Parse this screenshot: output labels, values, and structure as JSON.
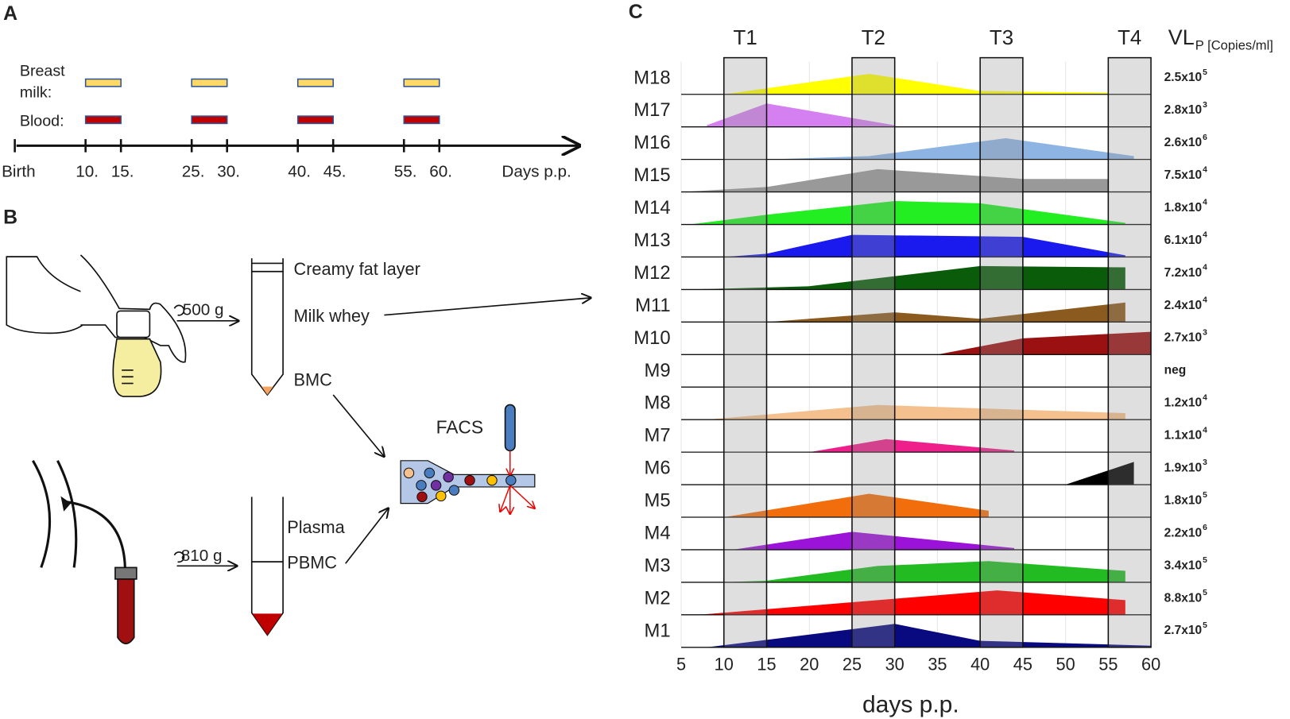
{
  "panel_labels": [
    "A",
    "B",
    "C"
  ],
  "panel_a": {
    "row_labels": [
      [
        "Breast",
        "milk:"
      ],
      "Blood:"
    ],
    "windows": [
      [
        10,
        15
      ],
      [
        25,
        30
      ],
      [
        40,
        45
      ],
      [
        55,
        60
      ]
    ],
    "ticks": [
      {
        "value": 0,
        "label": "Birth"
      },
      {
        "value": 10,
        "label": "10."
      },
      {
        "value": 15,
        "label": "15."
      },
      {
        "value": 25,
        "label": "25."
      },
      {
        "value": 30,
        "label": "30."
      },
      {
        "value": 40,
        "label": "40."
      },
      {
        "value": 45,
        "label": "45."
      },
      {
        "value": 55,
        "label": "55."
      },
      {
        "value": 60,
        "label": "60."
      }
    ],
    "axis_label": "Days p.p.",
    "milk_color": "#ffd966",
    "blood_color": "#c00000"
  },
  "panel_b": {
    "milk_spin": "500 g",
    "blood_spin": "810 g",
    "milk_layers": [
      "Creamy fat layer",
      "Milk whey",
      "BMC"
    ],
    "blood_layers": [
      "Plasma",
      "PBMC"
    ],
    "facs": "FACS"
  },
  "chart_data": {
    "type": "area",
    "xlabel": "days p.p.",
    "xlim": [
      5,
      60
    ],
    "xticks": [
      5,
      10,
      15,
      20,
      25,
      30,
      35,
      40,
      45,
      50,
      55,
      60
    ],
    "ylim": [
      0,
      1
    ],
    "grid": true,
    "periods": [
      {
        "label": "T1",
        "range": [
          10,
          15
        ]
      },
      {
        "label": "T2",
        "range": [
          25,
          30
        ]
      },
      {
        "label": "T3",
        "range": [
          40,
          45
        ]
      },
      {
        "label": "T4",
        "range": [
          55,
          60
        ]
      }
    ],
    "vl_header": "VL",
    "vl_header_sub": "P [Copies/ml]",
    "series": [
      {
        "name": "M18",
        "color": "#ffff00",
        "x": [
          10,
          27,
          40,
          55,
          55
        ],
        "values": [
          0,
          0.63,
          0.1,
          0.05,
          0
        ],
        "vl": "2.5x10",
        "vl_exp": "5"
      },
      {
        "name": "M17",
        "color": "#d580f0",
        "x": [
          8,
          15,
          30
        ],
        "values": [
          0.05,
          0.72,
          0.05
        ],
        "vl": "2.8x10",
        "vl_exp": "3"
      },
      {
        "name": "M16",
        "color": "#8db4e2",
        "x": [
          15,
          27,
          43,
          58
        ],
        "values": [
          0,
          0.1,
          0.65,
          0.1
        ],
        "vl": "2.6x10",
        "vl_exp": "6"
      },
      {
        "name": "M15",
        "color": "#999999",
        "x": [
          5,
          15,
          28,
          45,
          55,
          55
        ],
        "values": [
          0,
          0.15,
          0.7,
          0.4,
          0.4,
          0
        ],
        "vl": "7.5x10",
        "vl_exp": "4"
      },
      {
        "name": "M14",
        "color": "#22ee22",
        "x": [
          6,
          15,
          30,
          40,
          57
        ],
        "values": [
          0,
          0.3,
          0.72,
          0.65,
          0.05
        ],
        "vl": "1.8x10",
        "vl_exp": "4"
      },
      {
        "name": "M13",
        "color": "#1a1aee",
        "x": [
          10,
          15,
          25,
          45,
          57
        ],
        "values": [
          0,
          0.1,
          0.68,
          0.62,
          0.05
        ],
        "vl": "6.1x10",
        "vl_exp": "4"
      },
      {
        "name": "M12",
        "color": "#0a5c0a",
        "x": [
          6,
          20,
          40,
          57,
          57
        ],
        "values": [
          0,
          0.1,
          0.72,
          0.68,
          0
        ],
        "vl": "7.2x10",
        "vl_exp": "4"
      },
      {
        "name": "M11",
        "color": "#8b5a1e",
        "x": [
          15,
          30,
          40,
          57,
          57
        ],
        "values": [
          0,
          0.3,
          0.1,
          0.6,
          0
        ],
        "vl": "2.4x10",
        "vl_exp": "4"
      },
      {
        "name": "M10",
        "color": "#9b1010",
        "x": [
          35,
          45,
          60,
          60
        ],
        "values": [
          0,
          0.5,
          0.7,
          0
        ],
        "vl": "2.7x10",
        "vl_exp": "3"
      },
      {
        "name": "M9",
        "color": "#ffffff",
        "x": [],
        "values": [],
        "vl": "neg"
      },
      {
        "name": "M8",
        "color": "#f4c08e",
        "x": [
          8,
          28,
          57,
          57
        ],
        "values": [
          0,
          0.45,
          0.2,
          0
        ],
        "vl": "1.2x10",
        "vl_exp": "4"
      },
      {
        "name": "M7",
        "color": "#ee1f8a",
        "x": [
          20,
          29,
          44
        ],
        "values": [
          0,
          0.4,
          0.05
        ],
        "vl": "1.1x10",
        "vl_exp": "4"
      },
      {
        "name": "M6",
        "color": "#000000",
        "x": [
          50,
          58,
          58
        ],
        "values": [
          0,
          0.7,
          0
        ],
        "vl": "1.9x10",
        "vl_exp": "3"
      },
      {
        "name": "M5",
        "color": "#f26d0c",
        "x": [
          10,
          27,
          41,
          41
        ],
        "values": [
          0,
          0.72,
          0.2,
          0
        ],
        "vl": "1.8x10",
        "vl_exp": "5"
      },
      {
        "name": "M4",
        "color": "#9b12d9",
        "x": [
          11,
          25,
          44
        ],
        "values": [
          0,
          0.55,
          0.05
        ],
        "vl": "2.2x10",
        "vl_exp": "6"
      },
      {
        "name": "M3",
        "color": "#22bb22",
        "x": [
          10,
          15,
          28,
          41,
          57,
          57
        ],
        "values": [
          0,
          0.05,
          0.5,
          0.65,
          0.35,
          0
        ],
        "vl": "3.4x10",
        "vl_exp": "5"
      },
      {
        "name": "M2",
        "color": "#ff0000",
        "x": [
          7,
          42,
          57,
          57
        ],
        "values": [
          0,
          0.75,
          0.45,
          0
        ],
        "vl": "8.8x10",
        "vl_exp": "5"
      },
      {
        "name": "M1",
        "color": "#0a0a80",
        "x": [
          8,
          30,
          40,
          60
        ],
        "values": [
          0,
          0.72,
          0.2,
          0.05
        ],
        "vl": "2.7x10",
        "vl_exp": "5"
      }
    ]
  }
}
